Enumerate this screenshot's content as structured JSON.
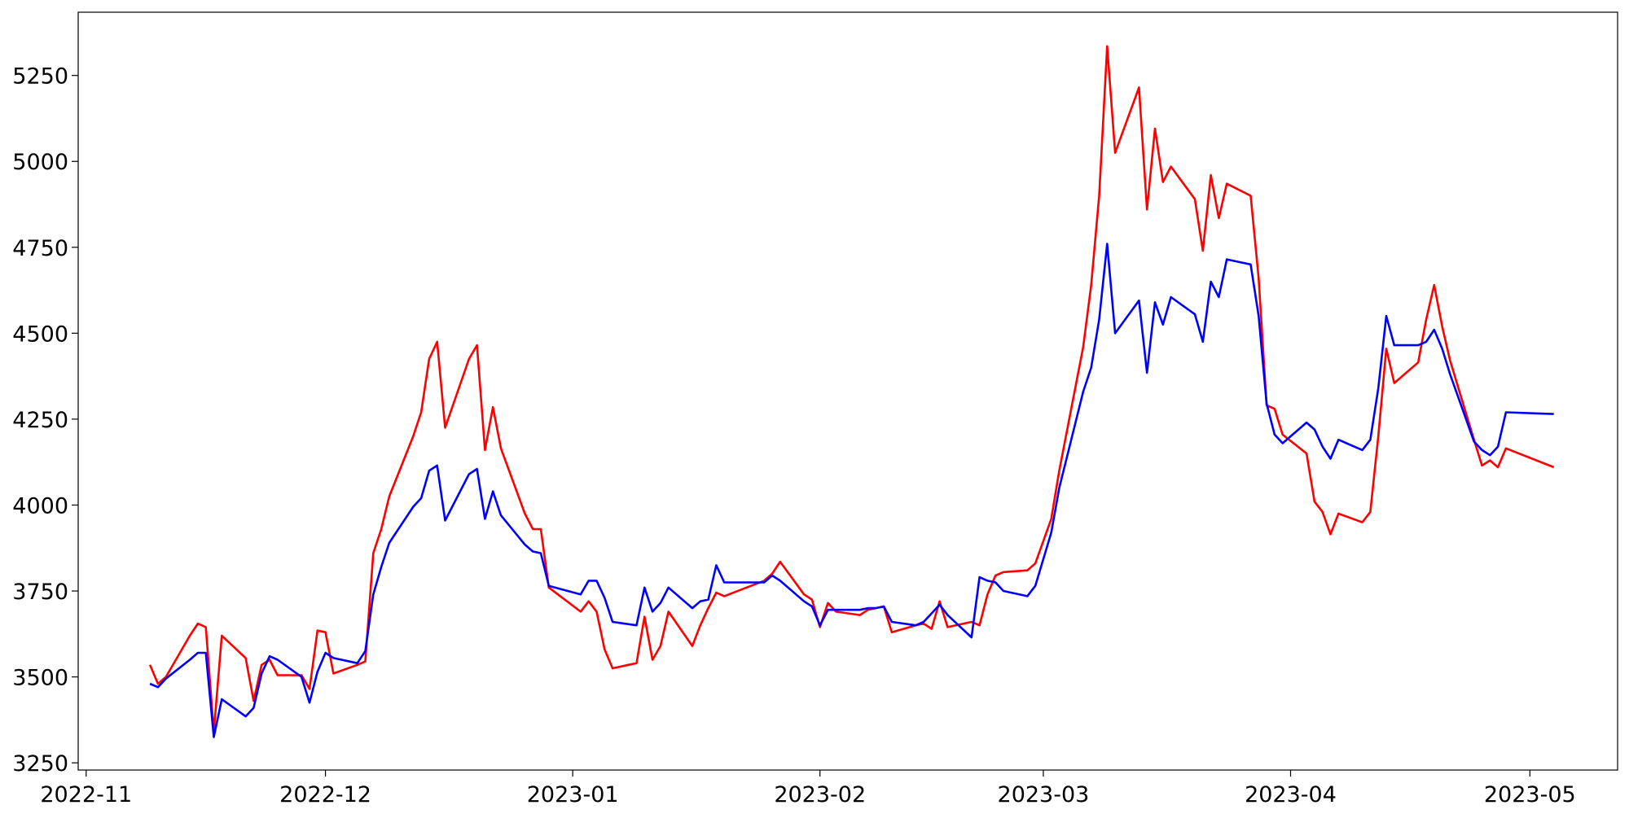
{
  "chart_data": {
    "type": "line",
    "x": [
      "2022-11-09",
      "2022-11-10",
      "2022-11-11",
      "2022-11-14",
      "2022-11-15",
      "2022-11-16",
      "2022-11-17",
      "2022-11-18",
      "2022-11-21",
      "2022-11-22",
      "2022-11-23",
      "2022-11-24",
      "2022-11-25",
      "2022-11-28",
      "2022-11-29",
      "2022-11-30",
      "2022-12-01",
      "2022-12-02",
      "2022-12-05",
      "2022-12-06",
      "2022-12-07",
      "2022-12-08",
      "2022-12-09",
      "2022-12-12",
      "2022-12-13",
      "2022-12-14",
      "2022-12-15",
      "2022-12-16",
      "2022-12-19",
      "2022-12-20",
      "2022-12-21",
      "2022-12-22",
      "2022-12-23",
      "2022-12-26",
      "2022-12-27",
      "2022-12-28",
      "2022-12-29",
      "2023-01-02",
      "2023-01-03",
      "2023-01-04",
      "2023-01-05",
      "2023-01-06",
      "2023-01-09",
      "2023-01-10",
      "2023-01-11",
      "2023-01-12",
      "2023-01-13",
      "2023-01-16",
      "2023-01-17",
      "2023-01-18",
      "2023-01-19",
      "2023-01-20",
      "2023-01-25",
      "2023-01-26",
      "2023-01-27",
      "2023-01-30",
      "2023-01-31",
      "2023-02-01",
      "2023-02-02",
      "2023-02-03",
      "2023-02-06",
      "2023-02-07",
      "2023-02-08",
      "2023-02-09",
      "2023-02-10",
      "2023-02-13",
      "2023-02-14",
      "2023-02-15",
      "2023-02-16",
      "2023-02-17",
      "2023-02-20",
      "2023-02-21",
      "2023-02-22",
      "2023-02-23",
      "2023-02-24",
      "2023-02-27",
      "2023-02-28",
      "2023-03-02",
      "2023-03-03",
      "2023-03-06",
      "2023-03-07",
      "2023-03-08",
      "2023-03-09",
      "2023-03-10",
      "2023-03-13",
      "2023-03-14",
      "2023-03-15",
      "2023-03-16",
      "2023-03-17",
      "2023-03-20",
      "2023-03-21",
      "2023-03-22",
      "2023-03-23",
      "2023-03-24",
      "2023-03-27",
      "2023-03-28",
      "2023-03-29",
      "2023-03-30",
      "2023-03-31",
      "2023-04-03",
      "2023-04-04",
      "2023-04-05",
      "2023-04-06",
      "2023-04-07",
      "2023-04-10",
      "2023-04-11",
      "2023-04-12",
      "2023-04-13",
      "2023-04-14",
      "2023-04-17",
      "2023-04-18",
      "2023-04-19",
      "2023-04-20",
      "2023-04-21",
      "2023-04-24",
      "2023-04-25",
      "2023-04-26",
      "2023-04-27",
      "2023-04-28",
      "2023-05-04"
    ],
    "series": [
      {
        "color": "#ff0000",
        "values": [
          3535,
          3480,
          3500,
          3620,
          3655,
          3645,
          3340,
          3620,
          3555,
          3430,
          3535,
          3550,
          3505,
          3505,
          3465,
          3635,
          3630,
          3510,
          3535,
          3545,
          3860,
          3930,
          4025,
          4200,
          4270,
          4425,
          4475,
          4225,
          4425,
          4465,
          4160,
          4285,
          4165,
          3975,
          3930,
          3930,
          3760,
          3690,
          3720,
          3690,
          3580,
          3525,
          3540,
          3675,
          3550,
          3590,
          3690,
          3590,
          3650,
          3700,
          3745,
          3735,
          3780,
          3800,
          3835,
          3740,
          3725,
          3645,
          3715,
          3690,
          3680,
          3695,
          3700,
          3705,
          3630,
          3650,
          3655,
          3640,
          3720,
          3645,
          3660,
          3650,
          3740,
          3795,
          3805,
          3810,
          3830,
          3960,
          4100,
          4460,
          4640,
          4900,
          5335,
          5025,
          5215,
          4860,
          5095,
          4940,
          4985,
          4890,
          4740,
          4960,
          4835,
          4935,
          4900,
          4660,
          4290,
          4280,
          4205,
          4150,
          4010,
          3980,
          3915,
          3975,
          3950,
          3980,
          4200,
          4455,
          4355,
          4415,
          4540,
          4640,
          4520,
          4420,
          4190,
          4115,
          4130,
          4110,
          4165,
          4110
        ]
      },
      {
        "color": "#0000ff",
        "values": [
          3480,
          3470,
          3495,
          3550,
          3570,
          3570,
          3325,
          3435,
          3385,
          3410,
          3510,
          3560,
          3550,
          3500,
          3425,
          3515,
          3570,
          3555,
          3540,
          3575,
          3740,
          3820,
          3890,
          3995,
          4020,
          4100,
          4115,
          3955,
          4090,
          4105,
          3960,
          4040,
          3970,
          3885,
          3865,
          3860,
          3765,
          3740,
          3780,
          3780,
          3730,
          3660,
          3650,
          3760,
          3690,
          3715,
          3760,
          3700,
          3720,
          3725,
          3825,
          3775,
          3775,
          3795,
          3780,
          3720,
          3705,
          3650,
          3695,
          3695,
          3695,
          3700,
          3700,
          3705,
          3660,
          3650,
          3660,
          3685,
          3710,
          3680,
          3615,
          3790,
          3780,
          3775,
          3750,
          3735,
          3765,
          3920,
          4050,
          4330,
          4400,
          4540,
          4760,
          4500,
          4595,
          4385,
          4590,
          4525,
          4605,
          4555,
          4475,
          4650,
          4605,
          4715,
          4700,
          4550,
          4295,
          4205,
          4180,
          4240,
          4220,
          4170,
          4135,
          4190,
          4160,
          4190,
          4340,
          4550,
          4465,
          4465,
          4475,
          4510,
          4455,
          4380,
          4185,
          4160,
          4145,
          4170,
          4270,
          4265
        ]
      }
    ],
    "xlim": [
      "2022-10-31",
      "2023-05-12"
    ],
    "xticks": [
      {
        "value": "2022-11-01",
        "label": "2022-11"
      },
      {
        "value": "2022-12-01",
        "label": "2022-12"
      },
      {
        "value": "2023-01-01",
        "label": "2023-01"
      },
      {
        "value": "2023-02-01",
        "label": "2023-02"
      },
      {
        "value": "2023-03-01",
        "label": "2023-03"
      },
      {
        "value": "2023-04-01",
        "label": "2023-04"
      },
      {
        "value": "2023-05-01",
        "label": "2023-05"
      }
    ],
    "ylim": [
      3229,
      5434
    ],
    "yticks": [
      3250,
      3500,
      3750,
      4000,
      4250,
      4500,
      4750,
      5000,
      5250
    ],
    "grid": false
  }
}
